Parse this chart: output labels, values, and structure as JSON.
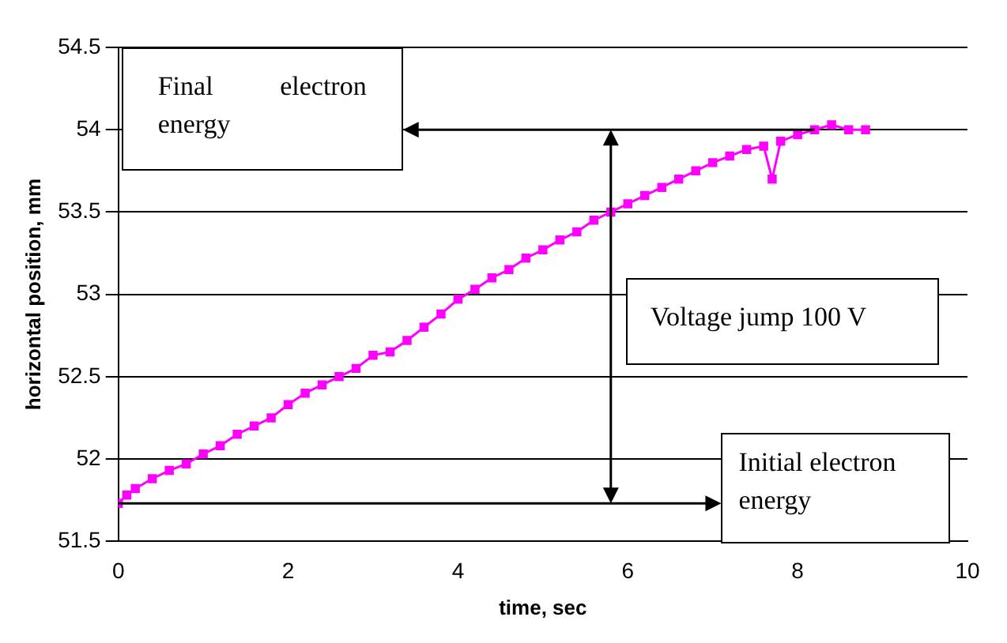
{
  "chart_data": {
    "type": "line",
    "xlabel": "time, sec",
    "ylabel": "horizontal position, mm",
    "xlim": [
      0,
      10
    ],
    "xticks": [
      0,
      2,
      4,
      6,
      8,
      10
    ],
    "ylim": [
      51.5,
      54.5
    ],
    "yticks": [
      51.5,
      52,
      52.5,
      53,
      53.5,
      54,
      54.5
    ],
    "grid": "y",
    "legend": false,
    "marker": "square",
    "annotations": [
      "Final electron energy",
      "Voltage jump 100 V",
      "Initial electron energy"
    ],
    "series": [
      {
        "color": "#ff00ff",
        "x": [
          0,
          0.1,
          0.2,
          0.4,
          0.6,
          0.8,
          1.0,
          1.2,
          1.4,
          1.6,
          1.8,
          2.0,
          2.2,
          2.4,
          2.6,
          2.8,
          3.0,
          3.2,
          3.4,
          3.6,
          3.8,
          4.0,
          4.2,
          4.4,
          4.6,
          4.8,
          5.0,
          5.2,
          5.4,
          5.6,
          5.8,
          6.0,
          6.2,
          6.4,
          6.6,
          6.8,
          7.0,
          7.2,
          7.4,
          7.6,
          7.7,
          7.8,
          8.0,
          8.2,
          8.4,
          8.6,
          8.8
        ],
        "values": [
          51.73,
          51.78,
          51.82,
          51.88,
          51.93,
          51.97,
          52.03,
          52.08,
          52.15,
          52.2,
          52.25,
          52.33,
          52.4,
          52.45,
          52.5,
          52.55,
          52.63,
          52.65,
          52.72,
          52.8,
          52.88,
          52.97,
          53.03,
          53.1,
          53.15,
          53.22,
          53.27,
          53.33,
          53.38,
          53.45,
          53.5,
          53.55,
          53.6,
          53.65,
          53.7,
          53.75,
          53.8,
          53.84,
          53.88,
          53.9,
          53.7,
          53.93,
          53.97,
          54.0,
          54.03,
          54.0,
          54.0
        ]
      }
    ]
  }
}
